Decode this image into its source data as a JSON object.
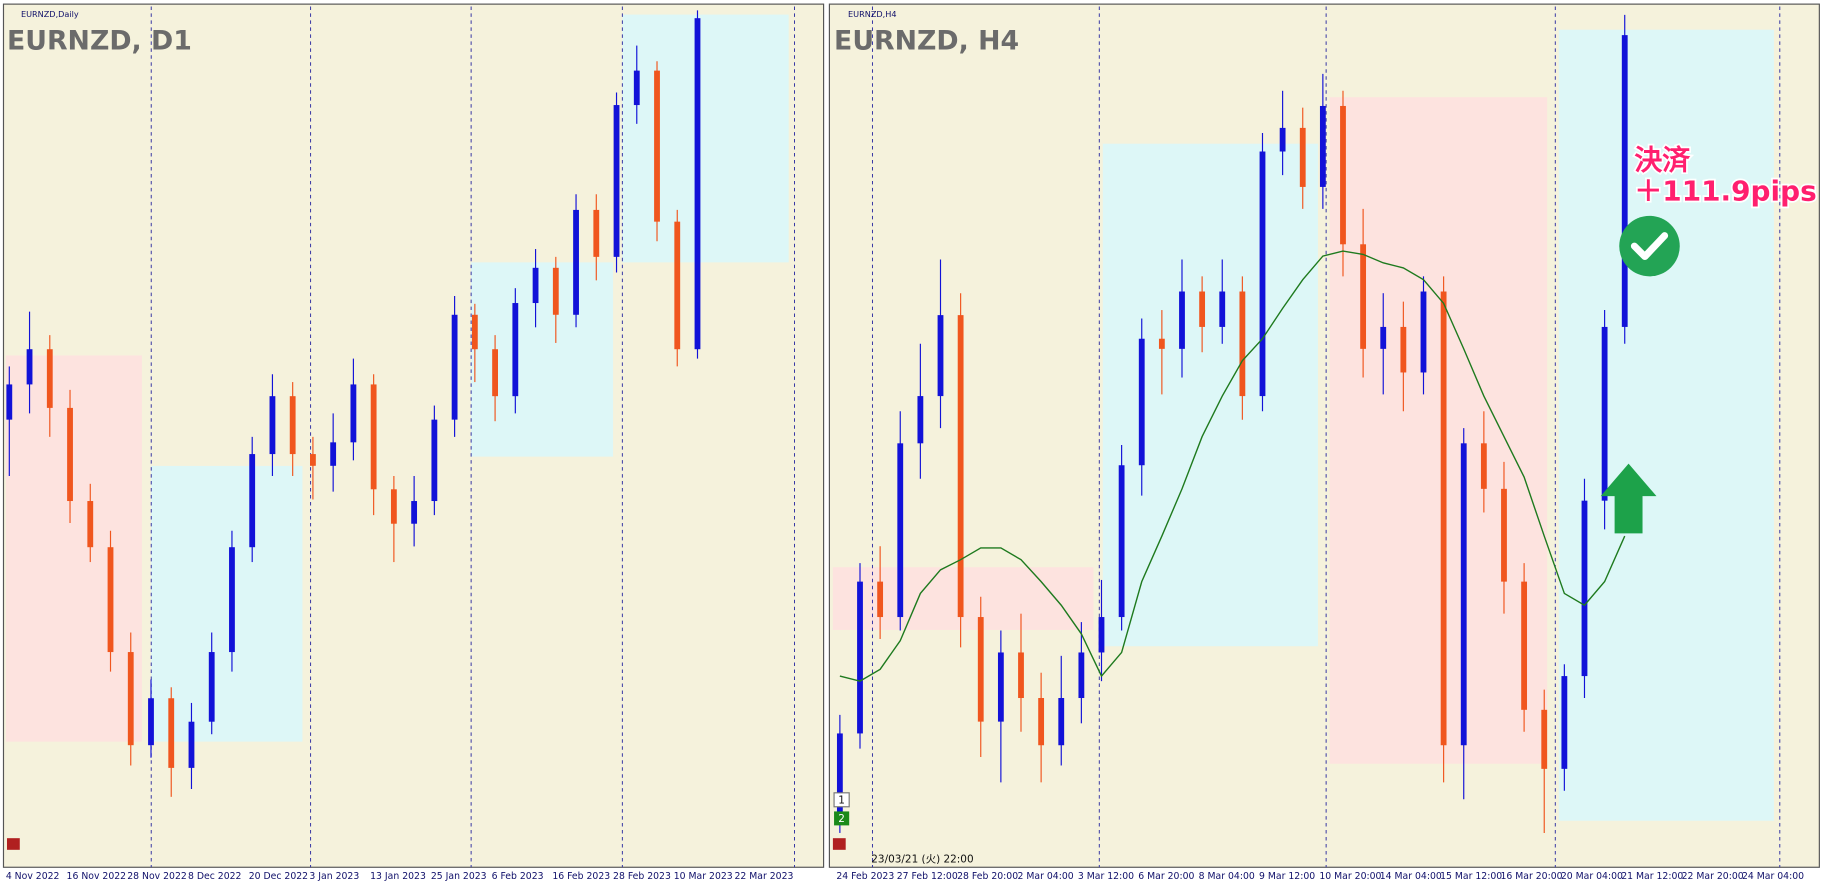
{
  "chart_data": [
    {
      "type": "candlestick",
      "window_title": "EURNZD,Daily",
      "title": "EURNZD, D1",
      "categories": [
        "4 Nov 2022",
        null,
        null,
        "16 Nov 2022",
        null,
        null,
        "28 Nov 2022",
        null,
        null,
        "8 Dec 2022",
        null,
        null,
        "20 Dec 2022",
        null,
        null,
        "3 Jan 2023",
        null,
        null,
        "13 Jan 2023",
        null,
        null,
        "25 Jan 2023",
        null,
        null,
        "6 Feb 2023",
        null,
        null,
        "16 Feb 2023",
        null,
        null,
        "28 Feb 2023",
        null,
        null,
        "10 Mar 2023",
        null,
        null,
        "22 Mar 2023",
        null,
        null
      ],
      "open": [
        1.7222,
        1.7267,
        1.7312,
        1.7237,
        1.7118,
        1.7059,
        1.6925,
        1.6806,
        1.6866,
        1.6777,
        1.6836,
        1.6925,
        1.7059,
        1.7178,
        1.7252,
        1.7178,
        1.7163,
        1.7193,
        1.7267,
        1.7133,
        1.7089,
        1.7118,
        1.7222,
        1.7356,
        1.7312,
        1.7252,
        1.7371,
        1.7416,
        1.7356,
        1.749,
        1.743,
        1.7624,
        1.7668,
        1.7475,
        1.7312,
        null,
        null,
        null,
        null
      ],
      "high": [
        1.729,
        1.736,
        1.733,
        1.726,
        1.714,
        1.708,
        1.695,
        1.689,
        1.688,
        1.686,
        1.695,
        1.708,
        1.72,
        1.728,
        1.727,
        1.72,
        1.723,
        1.73,
        1.728,
        1.715,
        1.715,
        1.724,
        1.738,
        1.737,
        1.733,
        1.739,
        1.744,
        1.743,
        1.751,
        1.751,
        1.764,
        1.77,
        1.768,
        1.749,
        1.7745,
        null,
        null,
        null,
        null
      ],
      "low": [
        1.715,
        1.723,
        1.72,
        1.709,
        1.704,
        1.69,
        1.678,
        1.679,
        1.674,
        1.675,
        1.682,
        1.69,
        1.704,
        1.715,
        1.715,
        1.712,
        1.713,
        1.717,
        1.71,
        1.704,
        1.706,
        1.71,
        1.72,
        1.727,
        1.722,
        1.723,
        1.734,
        1.732,
        1.734,
        1.74,
        1.741,
        1.76,
        1.745,
        1.729,
        1.73,
        null,
        null,
        null,
        null
      ],
      "close": [
        1.7267,
        1.7312,
        1.7237,
        1.7118,
        1.7059,
        1.6925,
        1.6806,
        1.6866,
        1.6777,
        1.6836,
        1.6925,
        1.7059,
        1.7178,
        1.7252,
        1.7178,
        1.7163,
        1.7193,
        1.7267,
        1.7133,
        1.7089,
        1.7118,
        1.7222,
        1.7356,
        1.7312,
        1.7252,
        1.7371,
        1.7416,
        1.7356,
        1.749,
        1.743,
        1.7624,
        1.7668,
        1.7475,
        1.7312,
        1.7735,
        null,
        null,
        null,
        null
      ],
      "up_color": "#1212d8",
      "down_color": "#f0561e",
      "ylim": [
        1.665,
        1.775
      ]
    },
    {
      "type": "candlestick",
      "window_title": "EURNZD,H4",
      "title": "EURNZD, H4",
      "categories": [
        "24 Feb 2023",
        null,
        null,
        "27 Feb 12:00",
        null,
        null,
        "28 Feb 20:00",
        null,
        null,
        "2 Mar 04:00",
        null,
        null,
        "3 Mar 12:00",
        null,
        null,
        "6 Mar 20:00",
        null,
        null,
        "8 Mar 04:00",
        null,
        null,
        "9 Mar 12:00",
        null,
        null,
        "10 Mar 20:00",
        null,
        null,
        "14 Mar 04:00",
        null,
        null,
        "15 Mar 12:00",
        null,
        null,
        "16 Mar 20:00",
        null,
        null,
        "20 Mar 04:00",
        null,
        null,
        "21 Mar 12:00",
        null,
        null,
        "22 Mar 20:00",
        null,
        null,
        "24 Mar 04:00",
        null,
        null
      ],
      "open": [
        1.7281,
        1.7329,
        1.7419,
        1.7398,
        1.7501,
        1.7529,
        1.7577,
        1.7398,
        1.7336,
        1.7377,
        1.735,
        1.7322,
        1.735,
        1.7377,
        1.7398,
        1.7488,
        1.7563,
        1.7557,
        1.7591,
        1.757,
        1.7591,
        1.7529,
        1.7674,
        1.7688,
        1.7653,
        1.7701,
        1.7619,
        1.7557,
        1.757,
        1.7543,
        1.7591,
        1.7322,
        1.7501,
        1.7474,
        1.7419,
        1.7343,
        1.7308,
        1.7363,
        1.7467,
        1.757,
        null,
        null,
        null,
        null,
        null,
        null,
        null,
        null
      ],
      "high": [
        1.734,
        1.743,
        1.744,
        1.752,
        1.756,
        1.761,
        1.759,
        1.741,
        1.739,
        1.74,
        1.7365,
        1.7375,
        1.7395,
        1.742,
        1.75,
        1.7575,
        1.758,
        1.761,
        1.76,
        1.761,
        1.76,
        1.7685,
        1.771,
        1.77,
        1.772,
        1.771,
        1.764,
        1.759,
        1.7585,
        1.76,
        1.76,
        1.751,
        1.752,
        1.749,
        1.743,
        1.7355,
        1.737,
        1.748,
        1.758,
        1.7755,
        null,
        null,
        null,
        null,
        null,
        null,
        null,
        null
      ],
      "low": [
        1.727,
        1.732,
        1.7385,
        1.739,
        1.748,
        1.751,
        1.738,
        1.7315,
        1.73,
        1.733,
        1.73,
        1.731,
        1.7335,
        1.736,
        1.739,
        1.747,
        1.753,
        1.754,
        1.7555,
        1.756,
        1.7515,
        1.752,
        1.766,
        1.764,
        1.764,
        1.76,
        1.754,
        1.753,
        1.752,
        1.753,
        1.73,
        1.729,
        1.746,
        1.74,
        1.733,
        1.727,
        1.7295,
        1.735,
        1.745,
        1.756,
        null,
        null,
        null,
        null,
        null,
        null,
        null,
        null
      ],
      "close": [
        1.7329,
        1.7419,
        1.7398,
        1.7501,
        1.7529,
        1.7577,
        1.7398,
        1.7336,
        1.7377,
        1.735,
        1.7322,
        1.735,
        1.7377,
        1.7398,
        1.7488,
        1.7563,
        1.7557,
        1.7591,
        1.757,
        1.7591,
        1.7529,
        1.7674,
        1.7688,
        1.7653,
        1.7701,
        1.7619,
        1.7557,
        1.757,
        1.7543,
        1.7591,
        1.7322,
        1.7501,
        1.7474,
        1.7419,
        1.7343,
        1.7308,
        1.7363,
        1.7467,
        1.757,
        1.7743,
        null,
        null,
        null,
        null,
        null,
        null,
        null,
        null
      ],
      "ma": {
        "color": "#1e7a1e",
        "values": [
          1.7363,
          1.736,
          1.7367,
          1.7384,
          1.7412,
          1.7426,
          1.7432,
          1.7439,
          1.7439,
          1.7432,
          1.7419,
          1.7405,
          1.7388,
          1.7363,
          1.7377,
          1.7419,
          1.7446,
          1.7474,
          1.7505,
          1.7529,
          1.755,
          1.7563,
          1.7581,
          1.7598,
          1.7612,
          1.7615,
          1.7613,
          1.7608,
          1.7605,
          1.7598,
          1.7584,
          1.7557,
          1.7529,
          1.7505,
          1.7481,
          1.7446,
          1.7412,
          1.7405,
          1.7419,
          1.7446,
          null,
          null,
          null,
          null,
          null,
          null,
          null,
          null
        ]
      },
      "up_color": "#1212d8",
      "down_color": "#f0561e",
      "ylim": [
        1.726,
        1.776
      ],
      "annotations": [
        "決済",
        "＋111.9pips"
      ],
      "timestamp": "23/03/21 (火) 22:00",
      "subwindow_labels": [
        "1",
        "2"
      ]
    }
  ]
}
